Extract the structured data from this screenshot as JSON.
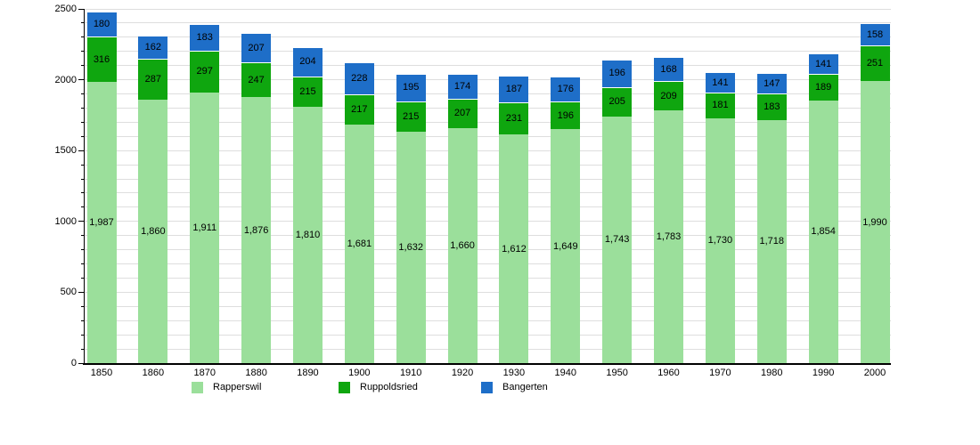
{
  "chart_data": {
    "type": "bar",
    "stacked": true,
    "title": "",
    "xlabel": "",
    "ylabel": "",
    "categories": [
      "1850",
      "1860",
      "1870",
      "1880",
      "1890",
      "1900",
      "1910",
      "1920",
      "1930",
      "1940",
      "1950",
      "1960",
      "1970",
      "1980",
      "1990",
      "2000"
    ],
    "series": [
      {
        "name": "Rapperswil",
        "color": "#9bdf9b",
        "values": [
          1987,
          1860,
          1911,
          1876,
          1810,
          1681,
          1632,
          1660,
          1612,
          1649,
          1743,
          1783,
          1730,
          1718,
          1854,
          1990
        ]
      },
      {
        "name": "Ruppoldsried",
        "color": "#0fa60f",
        "values": [
          316,
          287,
          297,
          247,
          215,
          217,
          215,
          207,
          231,
          196,
          205,
          209,
          181,
          183,
          189,
          251
        ]
      },
      {
        "name": "Bangerten",
        "color": "#1e6ec8",
        "values": [
          180,
          162,
          183,
          207,
          204,
          228,
          195,
          174,
          187,
          176,
          196,
          168,
          141,
          147,
          141,
          158
        ]
      }
    ],
    "ylim": [
      0,
      2500
    ],
    "y_major_ticks": [
      0,
      500,
      1000,
      1500,
      2000,
      2500
    ],
    "y_minor_interval": 100,
    "grid": true,
    "bar_value_labels": true,
    "legend_position": "bottom"
  },
  "colors": {
    "background": "#ffffff",
    "gridline": "#dedede",
    "axis": "#000000",
    "label_text": "#000000",
    "segment_separator": "#ffffff"
  }
}
